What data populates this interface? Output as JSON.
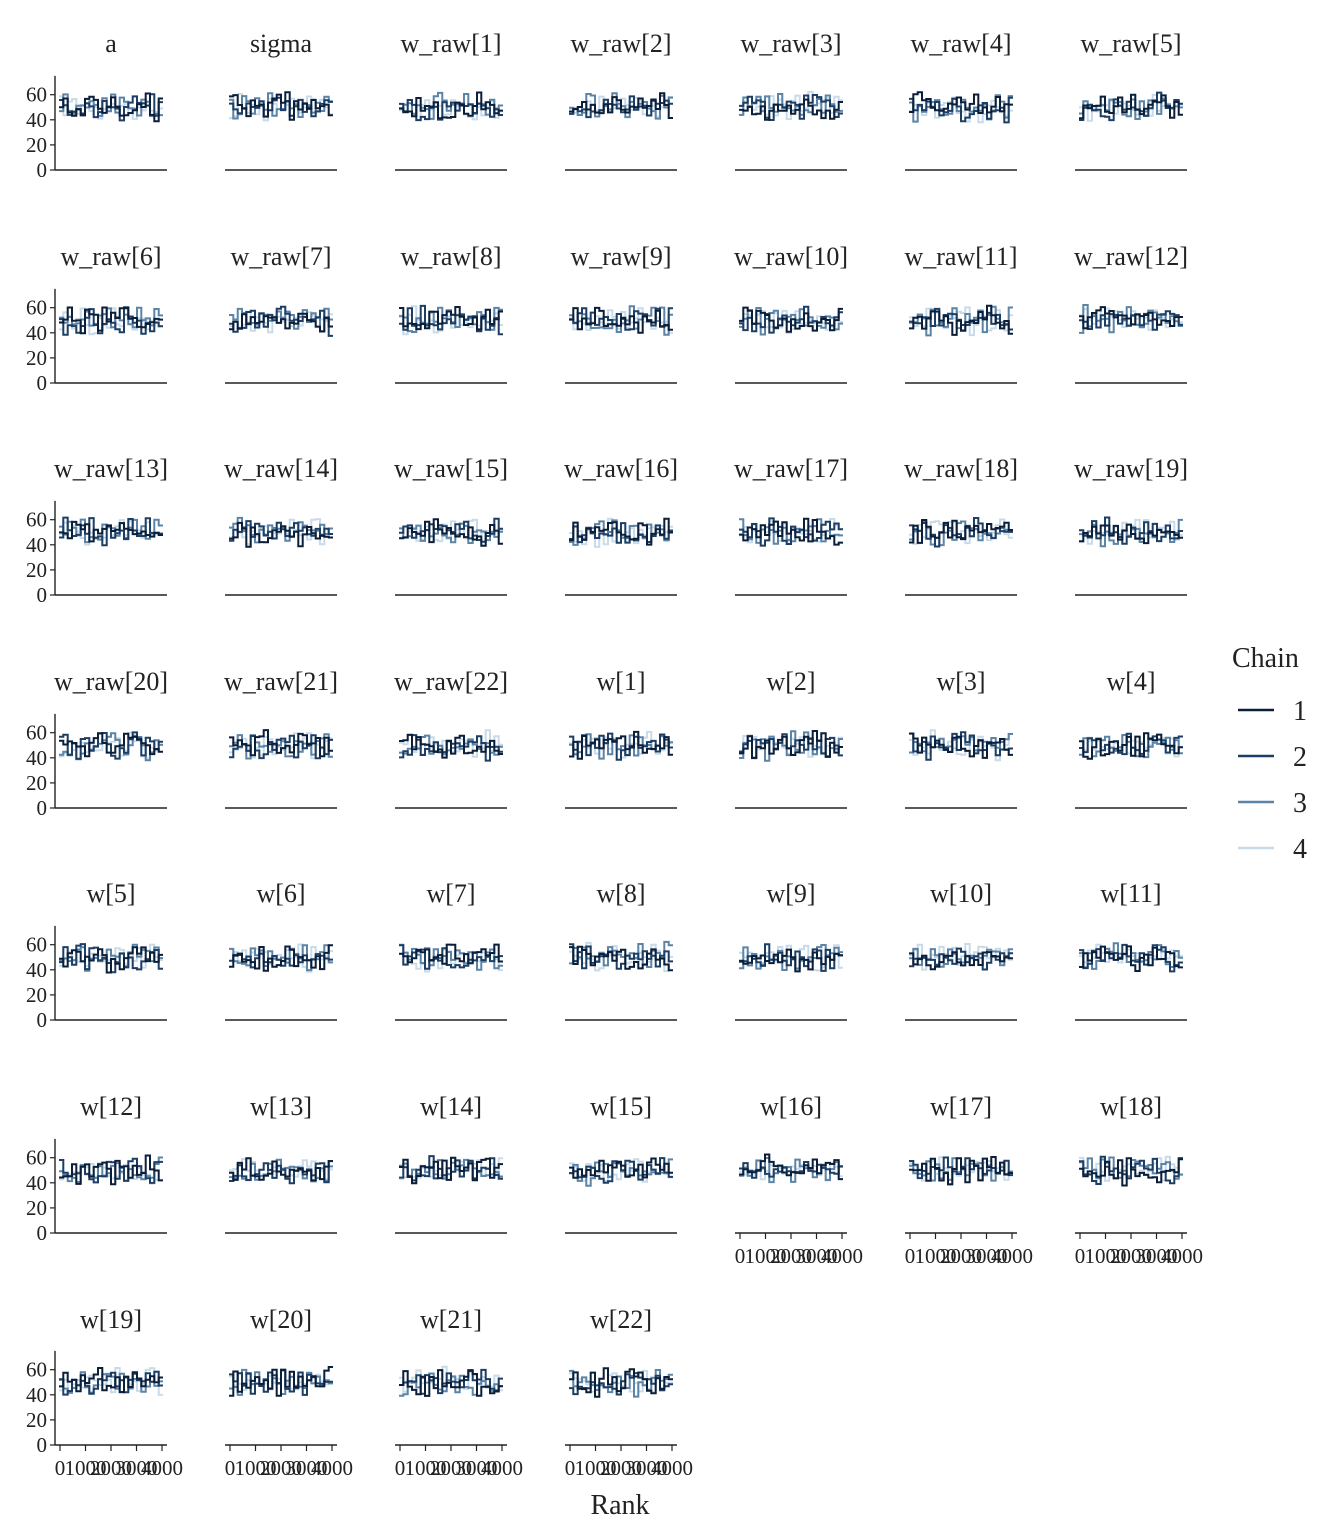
{
  "chart_data": {
    "type": "line",
    "subtype": "rank-histogram-trace (step)",
    "xlabel": "Rank",
    "ylabel": "",
    "xlim": [
      0,
      4000
    ],
    "ylim": [
      0,
      75
    ],
    "x_ticks": [
      "0",
      "1000",
      "2000",
      "3000",
      "4000"
    ],
    "y_ticks": [
      "0",
      "20",
      "40",
      "60"
    ],
    "grid": false,
    "legend": {
      "title": "Chain",
      "placement": "right",
      "entries": [
        {
          "label": "1",
          "color": "#0b1f3a"
        },
        {
          "label": "2",
          "color": "#1d3f66"
        },
        {
          "label": "3",
          "color": "#5b84a6"
        },
        {
          "label": "4",
          "color": "#c9dbe9"
        }
      ]
    },
    "series_names": [
      "1",
      "2",
      "3",
      "4"
    ],
    "approx_bin_count_range": [
      35,
      65
    ],
    "panels": [
      {
        "title": "a"
      },
      {
        "title": "sigma"
      },
      {
        "title": "w_raw[1]"
      },
      {
        "title": "w_raw[2]"
      },
      {
        "title": "w_raw[3]"
      },
      {
        "title": "w_raw[4]"
      },
      {
        "title": "w_raw[5]"
      },
      {
        "title": "w_raw[6]"
      },
      {
        "title": "w_raw[7]"
      },
      {
        "title": "w_raw[8]"
      },
      {
        "title": "w_raw[9]"
      },
      {
        "title": "w_raw[10]"
      },
      {
        "title": "w_raw[11]"
      },
      {
        "title": "w_raw[12]"
      },
      {
        "title": "w_raw[13]"
      },
      {
        "title": "w_raw[14]"
      },
      {
        "title": "w_raw[15]"
      },
      {
        "title": "w_raw[16]"
      },
      {
        "title": "w_raw[17]"
      },
      {
        "title": "w_raw[18]"
      },
      {
        "title": "w_raw[19]"
      },
      {
        "title": "w_raw[20]"
      },
      {
        "title": "w_raw[21]"
      },
      {
        "title": "w_raw[22]"
      },
      {
        "title": "w[1]"
      },
      {
        "title": "w[2]"
      },
      {
        "title": "w[3]"
      },
      {
        "title": "w[4]"
      },
      {
        "title": "w[5]"
      },
      {
        "title": "w[6]"
      },
      {
        "title": "w[7]"
      },
      {
        "title": "w[8]"
      },
      {
        "title": "w[9]"
      },
      {
        "title": "w[10]"
      },
      {
        "title": "w[11]"
      },
      {
        "title": "w[12]"
      },
      {
        "title": "w[13]"
      },
      {
        "title": "w[14]"
      },
      {
        "title": "w[15]"
      },
      {
        "title": "w[16]"
      },
      {
        "title": "w[17]"
      },
      {
        "title": "w[18]"
      },
      {
        "title": "w[19]"
      },
      {
        "title": "w[20]"
      },
      {
        "title": "w[21]"
      },
      {
        "title": "w[22]"
      }
    ]
  }
}
